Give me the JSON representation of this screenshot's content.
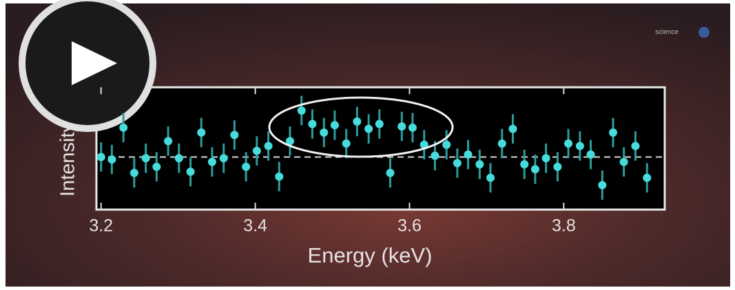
{
  "chart_data": {
    "type": "scatter",
    "xlabel": "Energy (keV)",
    "ylabel": "Intensity",
    "watermark": "science",
    "xlim": [
      3.194,
      3.931
    ],
    "xticks": [
      3.2,
      3.4,
      3.6,
      3.8
    ],
    "ylim": [
      0,
      10
    ],
    "reference_line": 4.3,
    "color": "#46dcdc",
    "error_color": "#2b9c9c",
    "series": [
      {
        "x": [
          3.2,
          3.214,
          3.229,
          3.243,
          3.258,
          3.272,
          3.287,
          3.301,
          3.316,
          3.33,
          3.344,
          3.359,
          3.373,
          3.388,
          3.402,
          3.417,
          3.431,
          3.445,
          3.46,
          3.474,
          3.489,
          3.503,
          3.518,
          3.532,
          3.547,
          3.561,
          3.575,
          3.59,
          3.604,
          3.619,
          3.633,
          3.648,
          3.662,
          3.676,
          3.691,
          3.705,
          3.72,
          3.734,
          3.749,
          3.763,
          3.777,
          3.792,
          3.806,
          3.821,
          3.835,
          3.85,
          3.864,
          3.878,
          3.893,
          3.908
        ],
        "values": [
          4.3,
          4.1,
          6.7,
          3.0,
          4.2,
          3.5,
          5.6,
          4.2,
          3.1,
          6.3,
          3.9,
          4.2,
          6.1,
          3.5,
          4.8,
          5.2,
          2.7,
          5.6,
          8.1,
          7.0,
          6.3,
          6.9,
          5.4,
          7.2,
          6.6,
          7.0,
          3.0,
          6.8,
          6.7,
          5.3,
          4.4,
          5.3,
          3.8,
          4.5,
          3.7,
          2.6,
          5.4,
          6.6,
          3.7,
          3.3,
          4.2,
          3.5,
          5.4,
          5.2,
          4.5,
          2.0,
          6.3,
          3.9,
          5.2,
          2.6
        ],
        "errors": [
          1.2,
          1.2,
          1.2,
          1.2,
          1.2,
          1.2,
          1.2,
          1.2,
          1.2,
          1.2,
          1.2,
          1.2,
          1.2,
          1.2,
          1.2,
          1.2,
          1.2,
          1.2,
          1.2,
          1.2,
          1.2,
          1.2,
          1.2,
          1.2,
          1.2,
          1.2,
          1.2,
          1.2,
          1.2,
          1.2,
          1.2,
          1.2,
          1.2,
          1.2,
          1.2,
          1.2,
          1.2,
          1.2,
          1.2,
          1.2,
          1.2,
          1.2,
          1.2,
          1.2,
          1.2,
          1.2,
          1.2,
          1.2,
          1.2,
          1.2
        ]
      }
    ]
  }
}
